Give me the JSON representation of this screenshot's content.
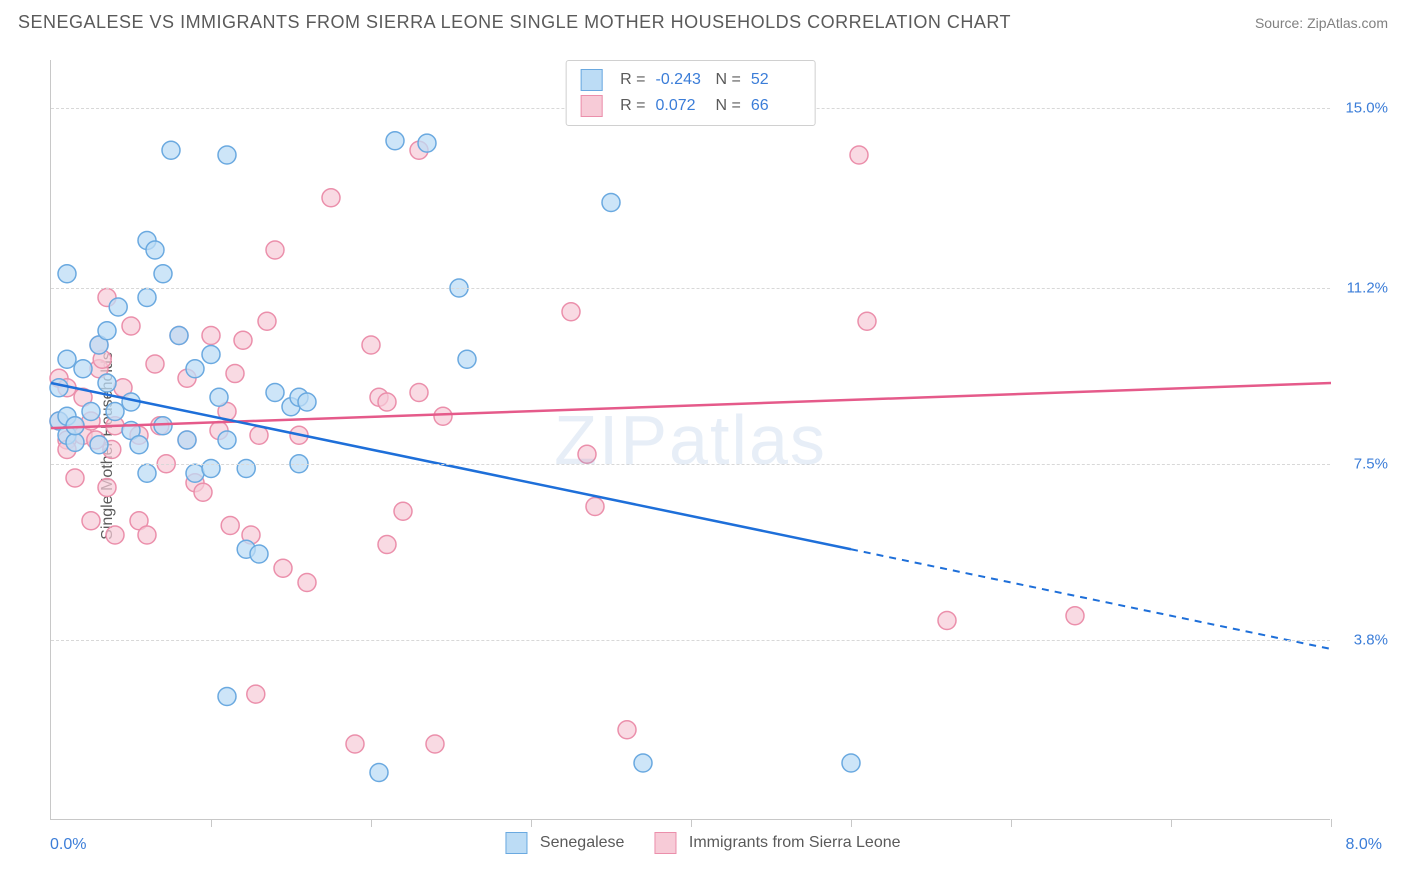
{
  "title": "SENEGALESE VS IMMIGRANTS FROM SIERRA LEONE SINGLE MOTHER HOUSEHOLDS CORRELATION CHART",
  "source": "Source: ZipAtlas.com",
  "watermark": "ZIPatlas",
  "ylabel": "Single Mother Households",
  "axes": {
    "xlim": [
      0,
      8
    ],
    "ylim": [
      0,
      16
    ],
    "x_min_label": "0.0%",
    "x_max_label": "8.0%",
    "x_ticks": [
      1,
      2,
      3,
      4,
      5,
      6,
      7,
      8
    ],
    "y_gridlines": [
      3.8,
      7.5,
      11.2,
      15.0
    ],
    "y_labels": [
      "3.8%",
      "7.5%",
      "11.2%",
      "15.0%"
    ],
    "grid_color": "#d8d8d8",
    "axis_color": "#c8c8c8",
    "tick_color": "#3b7dd8",
    "background_color": "#ffffff"
  },
  "series": [
    {
      "name": "Senegalese",
      "color_fill": "#bcdcf5",
      "color_stroke": "#6aa9e0",
      "line_color": "#1e6fd9",
      "marker_radius": 9,
      "marker_opacity": 0.75,
      "R": "-0.243",
      "N": "52",
      "trend": {
        "x1": 0,
        "y1": 9.2,
        "x2_solid": 5.0,
        "y2_solid": 5.7,
        "x2_dash": 8.0,
        "y2_dash": 3.6
      },
      "points": [
        [
          0.05,
          9.1
        ],
        [
          0.05,
          8.4
        ],
        [
          0.1,
          8.5
        ],
        [
          0.1,
          8.1
        ],
        [
          0.15,
          7.95
        ],
        [
          0.15,
          8.3
        ],
        [
          0.1,
          11.5
        ],
        [
          0.1,
          9.7
        ],
        [
          0.2,
          9.5
        ],
        [
          0.3,
          10.0
        ],
        [
          0.35,
          10.3
        ],
        [
          0.42,
          10.8
        ],
        [
          0.5,
          8.2
        ],
        [
          0.5,
          8.8
        ],
        [
          0.55,
          7.9
        ],
        [
          0.6,
          7.3
        ],
        [
          0.6,
          12.2
        ],
        [
          0.65,
          12.0
        ],
        [
          0.6,
          11.0
        ],
        [
          0.7,
          11.5
        ],
        [
          0.75,
          14.1
        ],
        [
          1.1,
          14.0
        ],
        [
          0.9,
          9.5
        ],
        [
          0.9,
          7.3
        ],
        [
          1.0,
          7.4
        ],
        [
          1.05,
          8.9
        ],
        [
          1.1,
          8.0
        ],
        [
          1.22,
          7.4
        ],
        [
          1.22,
          5.7
        ],
        [
          1.3,
          5.6
        ],
        [
          1.1,
          2.6
        ],
        [
          1.4,
          9.0
        ],
        [
          1.5,
          8.7
        ],
        [
          1.55,
          8.9
        ],
        [
          1.55,
          7.5
        ],
        [
          1.6,
          8.8
        ],
        [
          2.15,
          14.3
        ],
        [
          2.05,
          1.0
        ],
        [
          2.35,
          14.25
        ],
        [
          2.55,
          11.2
        ],
        [
          2.6,
          9.7
        ],
        [
          3.5,
          13.0
        ],
        [
          3.7,
          1.2
        ],
        [
          5.0,
          1.2
        ],
        [
          0.7,
          8.3
        ],
        [
          0.8,
          10.2
        ],
        [
          0.85,
          8.0
        ],
        [
          0.4,
          8.6
        ],
        [
          0.35,
          9.2
        ],
        [
          0.3,
          7.9
        ],
        [
          0.25,
          8.6
        ],
        [
          1.0,
          9.8
        ]
      ]
    },
    {
      "name": "Immigrants from Sierra Leone",
      "color_fill": "#f7cbd7",
      "color_stroke": "#eb8fab",
      "line_color": "#e55a8a",
      "marker_radius": 9,
      "marker_opacity": 0.7,
      "R": "0.072",
      "N": "66",
      "trend": {
        "x1": 0,
        "y1": 8.25,
        "x2_solid": 8.0,
        "y2_solid": 9.2,
        "x2_dash": 8.0,
        "y2_dash": 9.2
      },
      "points": [
        [
          0.05,
          8.4
        ],
        [
          0.05,
          9.3
        ],
        [
          0.1,
          9.1
        ],
        [
          0.1,
          8.0
        ],
        [
          0.1,
          7.8
        ],
        [
          0.15,
          8.3
        ],
        [
          0.15,
          7.2
        ],
        [
          0.2,
          8.1
        ],
        [
          0.2,
          8.9
        ],
        [
          0.25,
          8.4
        ],
        [
          0.25,
          6.3
        ],
        [
          0.28,
          8.0
        ],
        [
          0.3,
          9.5
        ],
        [
          0.32,
          9.7
        ],
        [
          0.35,
          7.0
        ],
        [
          0.38,
          7.8
        ],
        [
          0.4,
          6.0
        ],
        [
          0.4,
          8.3
        ],
        [
          0.45,
          9.1
        ],
        [
          0.5,
          10.4
        ],
        [
          0.55,
          8.1
        ],
        [
          0.55,
          6.3
        ],
        [
          0.6,
          6.0
        ],
        [
          0.65,
          9.6
        ],
        [
          0.68,
          8.3
        ],
        [
          0.72,
          7.5
        ],
        [
          0.8,
          10.2
        ],
        [
          0.85,
          8.0
        ],
        [
          0.85,
          9.3
        ],
        [
          0.9,
          7.1
        ],
        [
          0.95,
          6.9
        ],
        [
          1.0,
          10.2
        ],
        [
          1.05,
          8.2
        ],
        [
          1.1,
          8.6
        ],
        [
          1.12,
          6.2
        ],
        [
          1.15,
          9.4
        ],
        [
          1.2,
          10.1
        ],
        [
          1.25,
          6.0
        ],
        [
          1.28,
          2.65
        ],
        [
          1.3,
          8.1
        ],
        [
          1.35,
          10.5
        ],
        [
          1.4,
          12.0
        ],
        [
          1.45,
          5.3
        ],
        [
          1.55,
          8.1
        ],
        [
          1.6,
          5.0
        ],
        [
          1.75,
          13.1
        ],
        [
          1.9,
          1.6
        ],
        [
          2.0,
          10.0
        ],
        [
          2.05,
          8.9
        ],
        [
          2.1,
          5.8
        ],
        [
          2.1,
          8.8
        ],
        [
          2.2,
          6.5
        ],
        [
          2.3,
          14.1
        ],
        [
          2.3,
          9.0
        ],
        [
          2.4,
          1.6
        ],
        [
          2.45,
          8.5
        ],
        [
          3.25,
          10.7
        ],
        [
          3.4,
          6.6
        ],
        [
          3.35,
          7.7
        ],
        [
          3.6,
          1.9
        ],
        [
          5.05,
          14.0
        ],
        [
          5.1,
          10.5
        ],
        [
          5.6,
          4.2
        ],
        [
          6.4,
          4.3
        ],
        [
          0.3,
          10.0
        ],
        [
          0.35,
          11.0
        ]
      ]
    }
  ],
  "legend": {
    "r_label": "R =",
    "n_label": "N ="
  }
}
